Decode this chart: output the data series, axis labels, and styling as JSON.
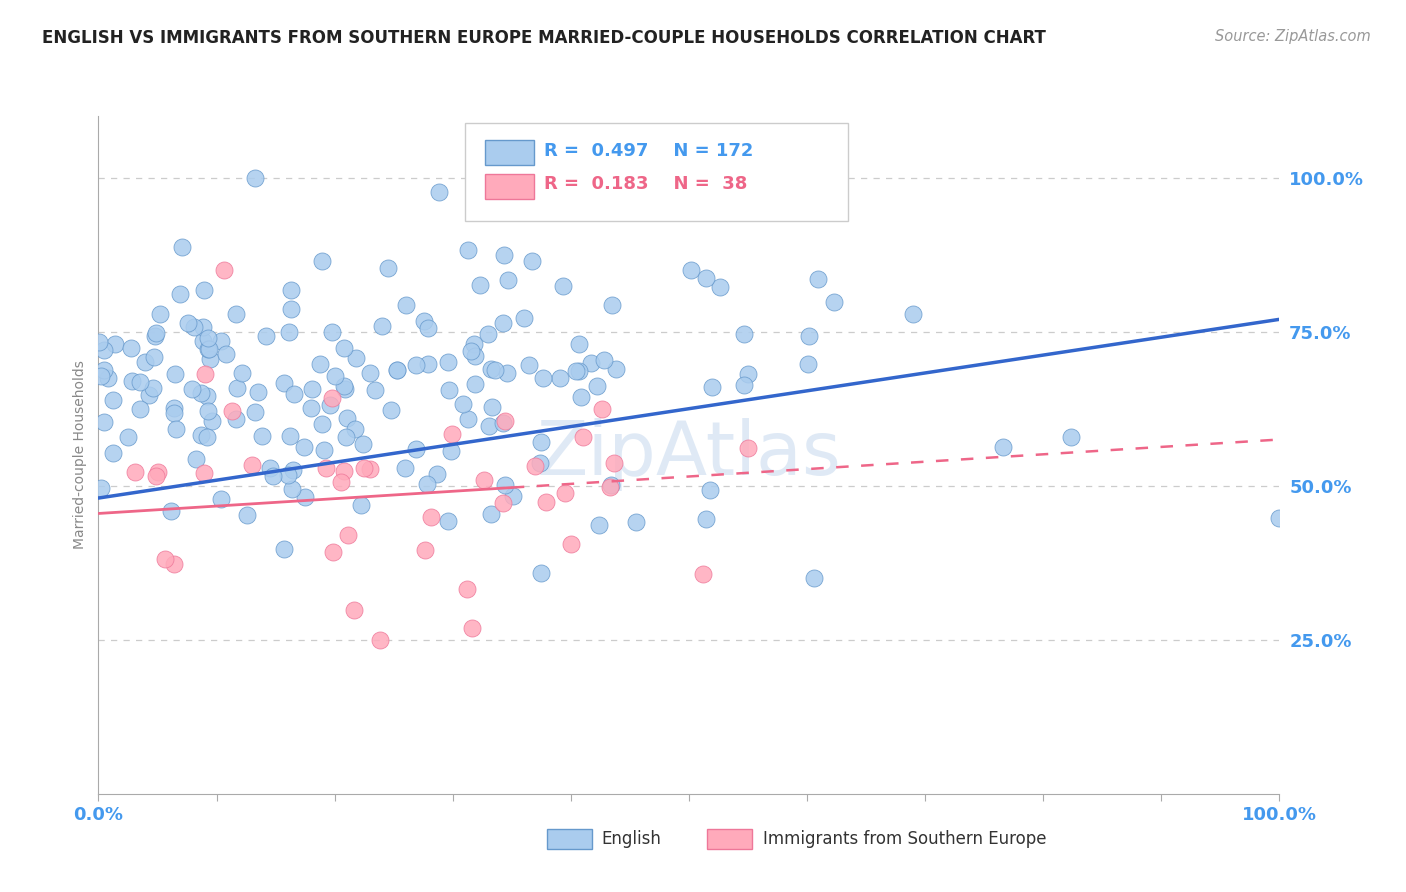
{
  "title": "ENGLISH VS IMMIGRANTS FROM SOUTHERN EUROPE MARRIED-COUPLE HOUSEHOLDS CORRELATION CHART",
  "source": "Source: ZipAtlas.com",
  "ylabel": "Married-couple Households",
  "ytick_labels": [
    "25.0%",
    "50.0%",
    "75.0%",
    "100.0%"
  ],
  "ytick_vals": [
    0.25,
    0.5,
    0.75,
    1.0
  ],
  "blue_R": 0.497,
  "blue_N": 172,
  "pink_R": 0.183,
  "pink_N": 38,
  "blue_scatter_color": "#aaccee",
  "blue_scatter_edge": "#6699cc",
  "pink_scatter_color": "#ffaabb",
  "pink_scatter_edge": "#ee7799",
  "blue_line_color": "#3366cc",
  "pink_line_color": "#ee6688",
  "grid_color": "#cccccc",
  "title_color": "#222222",
  "source_color": "#999999",
  "axis_tick_color": "#4499ee",
  "watermark_text": "ZipAtlas",
  "watermark_color": "#ccddeeff",
  "background_color": "#ffffff",
  "xlim": [
    0.0,
    1.0
  ],
  "ylim": [
    0.0,
    1.1
  ],
  "blue_line_start_y": 0.48,
  "blue_line_end_y": 0.77,
  "pink_line_start_y": 0.455,
  "pink_line_end_y": 0.575
}
